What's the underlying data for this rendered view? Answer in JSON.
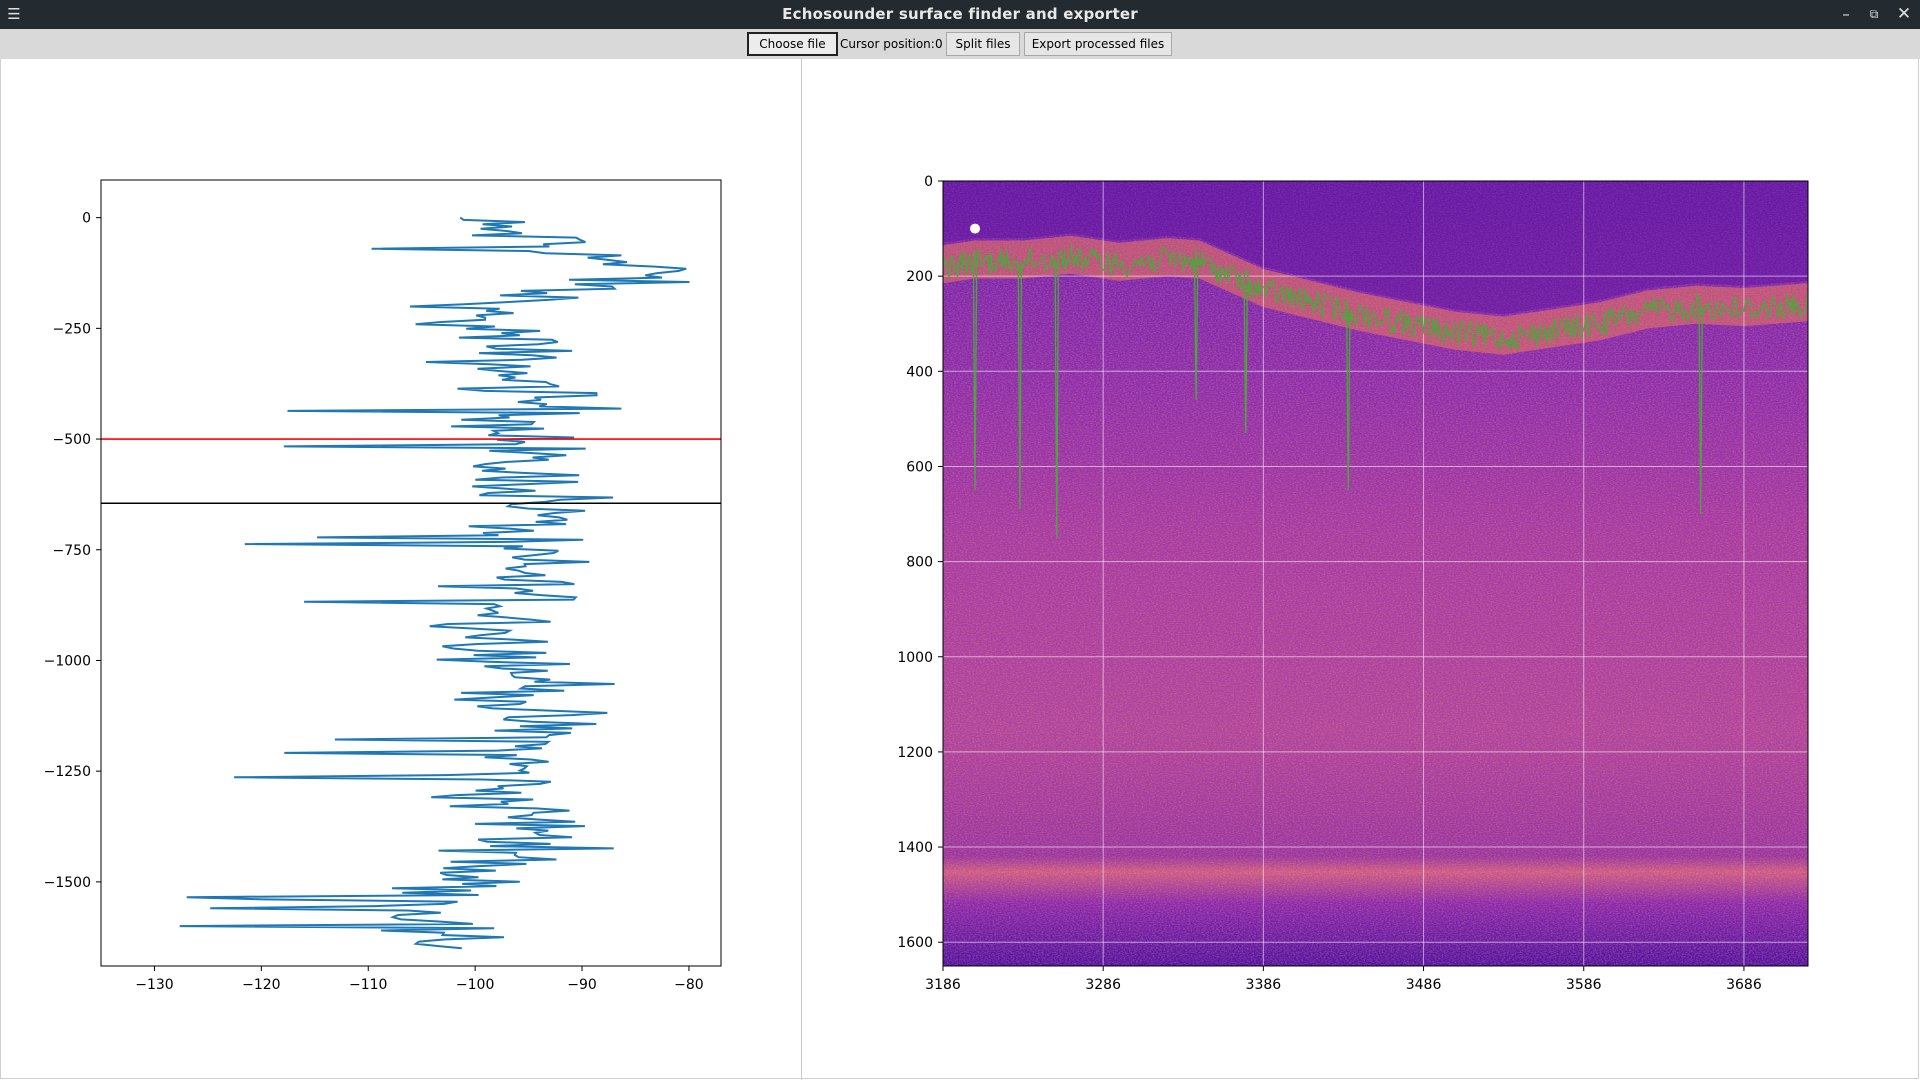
{
  "window": {
    "title": "Echosounder surface finder and exporter",
    "menu_icon": "hamburger-menu-icon",
    "controls": [
      "minimize-icon",
      "restore-icon",
      "close-icon"
    ]
  },
  "toolbar": {
    "choose_file_label": "Choose file",
    "cursor_label": "Cursor position:",
    "cursor_value": "0",
    "split_label": "Split files",
    "export_label": "Export processed files"
  },
  "chart_data": [
    {
      "type": "line",
      "title": "",
      "xlabel": "",
      "ylabel": "",
      "xlim": [
        -135,
        -77
      ],
      "ylim": [
        -1690,
        85
      ],
      "xticks": [
        -130,
        -120,
        -110,
        -100,
        -90,
        -80
      ],
      "xtick_labels": [
        "−130",
        "−120",
        "−110",
        "−100",
        "−90",
        "−80"
      ],
      "yticks": [
        0,
        -250,
        -500,
        -750,
        -1000,
        -1250,
        -1500
      ],
      "ytick_labels": [
        "0",
        "−250",
        "−500",
        "−750",
        "−1000",
        "−1250",
        "−1500"
      ],
      "grid": false,
      "series": [
        {
          "color": "#1f77b4",
          "profile": [
            {
              "y": 0,
              "x": -102
            },
            {
              "y": -40,
              "x": -96
            },
            {
              "y": -90,
              "x": -88
            },
            {
              "y": -130,
              "x": -84
            },
            {
              "y": -180,
              "x": -95
            },
            {
              "y": -220,
              "x": -102
            },
            {
              "y": -270,
              "x": -97
            },
            {
              "y": -320,
              "x": -98
            },
            {
              "y": -380,
              "x": -95
            },
            {
              "y": -440,
              "x": -93
            },
            {
              "y": -500,
              "x": -96
            },
            {
              "y": -560,
              "x": -97
            },
            {
              "y": -620,
              "x": -93
            },
            {
              "y": -680,
              "x": -95
            },
            {
              "y": -740,
              "x": -96
            },
            {
              "y": -800,
              "x": -96
            },
            {
              "y": -860,
              "x": -95
            },
            {
              "y": -920,
              "x": -97
            },
            {
              "y": -980,
              "x": -97
            },
            {
              "y": -1050,
              "x": -94
            },
            {
              "y": -1120,
              "x": -96
            },
            {
              "y": -1180,
              "x": -95
            },
            {
              "y": -1250,
              "x": -97
            },
            {
              "y": -1310,
              "x": -98
            },
            {
              "y": -1380,
              "x": -94
            },
            {
              "y": -1440,
              "x": -95
            },
            {
              "y": -1500,
              "x": -102
            },
            {
              "y": -1560,
              "x": -104
            },
            {
              "y": -1620,
              "x": -104
            },
            {
              "y": -1650,
              "x": -102
            }
          ],
          "spread": 10,
          "sample_count": 330
        }
      ],
      "hlines": [
        {
          "y": -500,
          "color": "#ff0000"
        },
        {
          "y": -645,
          "color": "#000000"
        }
      ]
    },
    {
      "type": "heatmap",
      "title": "",
      "xlabel": "",
      "ylabel": "",
      "xlim": [
        3186,
        3726
      ],
      "ylim": [
        1650,
        0
      ],
      "xticks": [
        3186,
        3286,
        3386,
        3486,
        3586,
        3686
      ],
      "xtick_labels": [
        "3186",
        "3286",
        "3386",
        "3486",
        "3586",
        "3686"
      ],
      "yticks": [
        0,
        200,
        400,
        600,
        800,
        1000,
        1200,
        1400,
        1600
      ],
      "ytick_labels": [
        "0",
        "200",
        "400",
        "600",
        "800",
        "1000",
        "1200",
        "1400",
        "1600"
      ],
      "grid": true,
      "colormap": "plasma",
      "surface_line": {
        "color": "#4aa83a",
        "x": [
          3186,
          3206,
          3236,
          3266,
          3296,
          3326,
          3346,
          3366,
          3386,
          3416,
          3446,
          3476,
          3506,
          3536,
          3566,
          3596,
          3626,
          3656,
          3686,
          3726
        ],
        "y": [
          180,
          170,
          170,
          160,
          175,
          165,
          170,
          200,
          230,
          255,
          280,
          300,
          320,
          330,
          315,
          300,
          275,
          265,
          270,
          260
        ],
        "spikes": [
          {
            "x": 3206,
            "depth": 650
          },
          {
            "x": 3234,
            "depth": 690
          },
          {
            "x": 3257,
            "depth": 750
          },
          {
            "x": 3344,
            "depth": 460
          },
          {
            "x": 3375,
            "depth": 530
          },
          {
            "x": 3439,
            "depth": 650
          },
          {
            "x": 3659,
            "depth": 700
          }
        ]
      },
      "marker": {
        "x": 3206,
        "y": 100,
        "color": "#ffffff"
      }
    }
  ]
}
